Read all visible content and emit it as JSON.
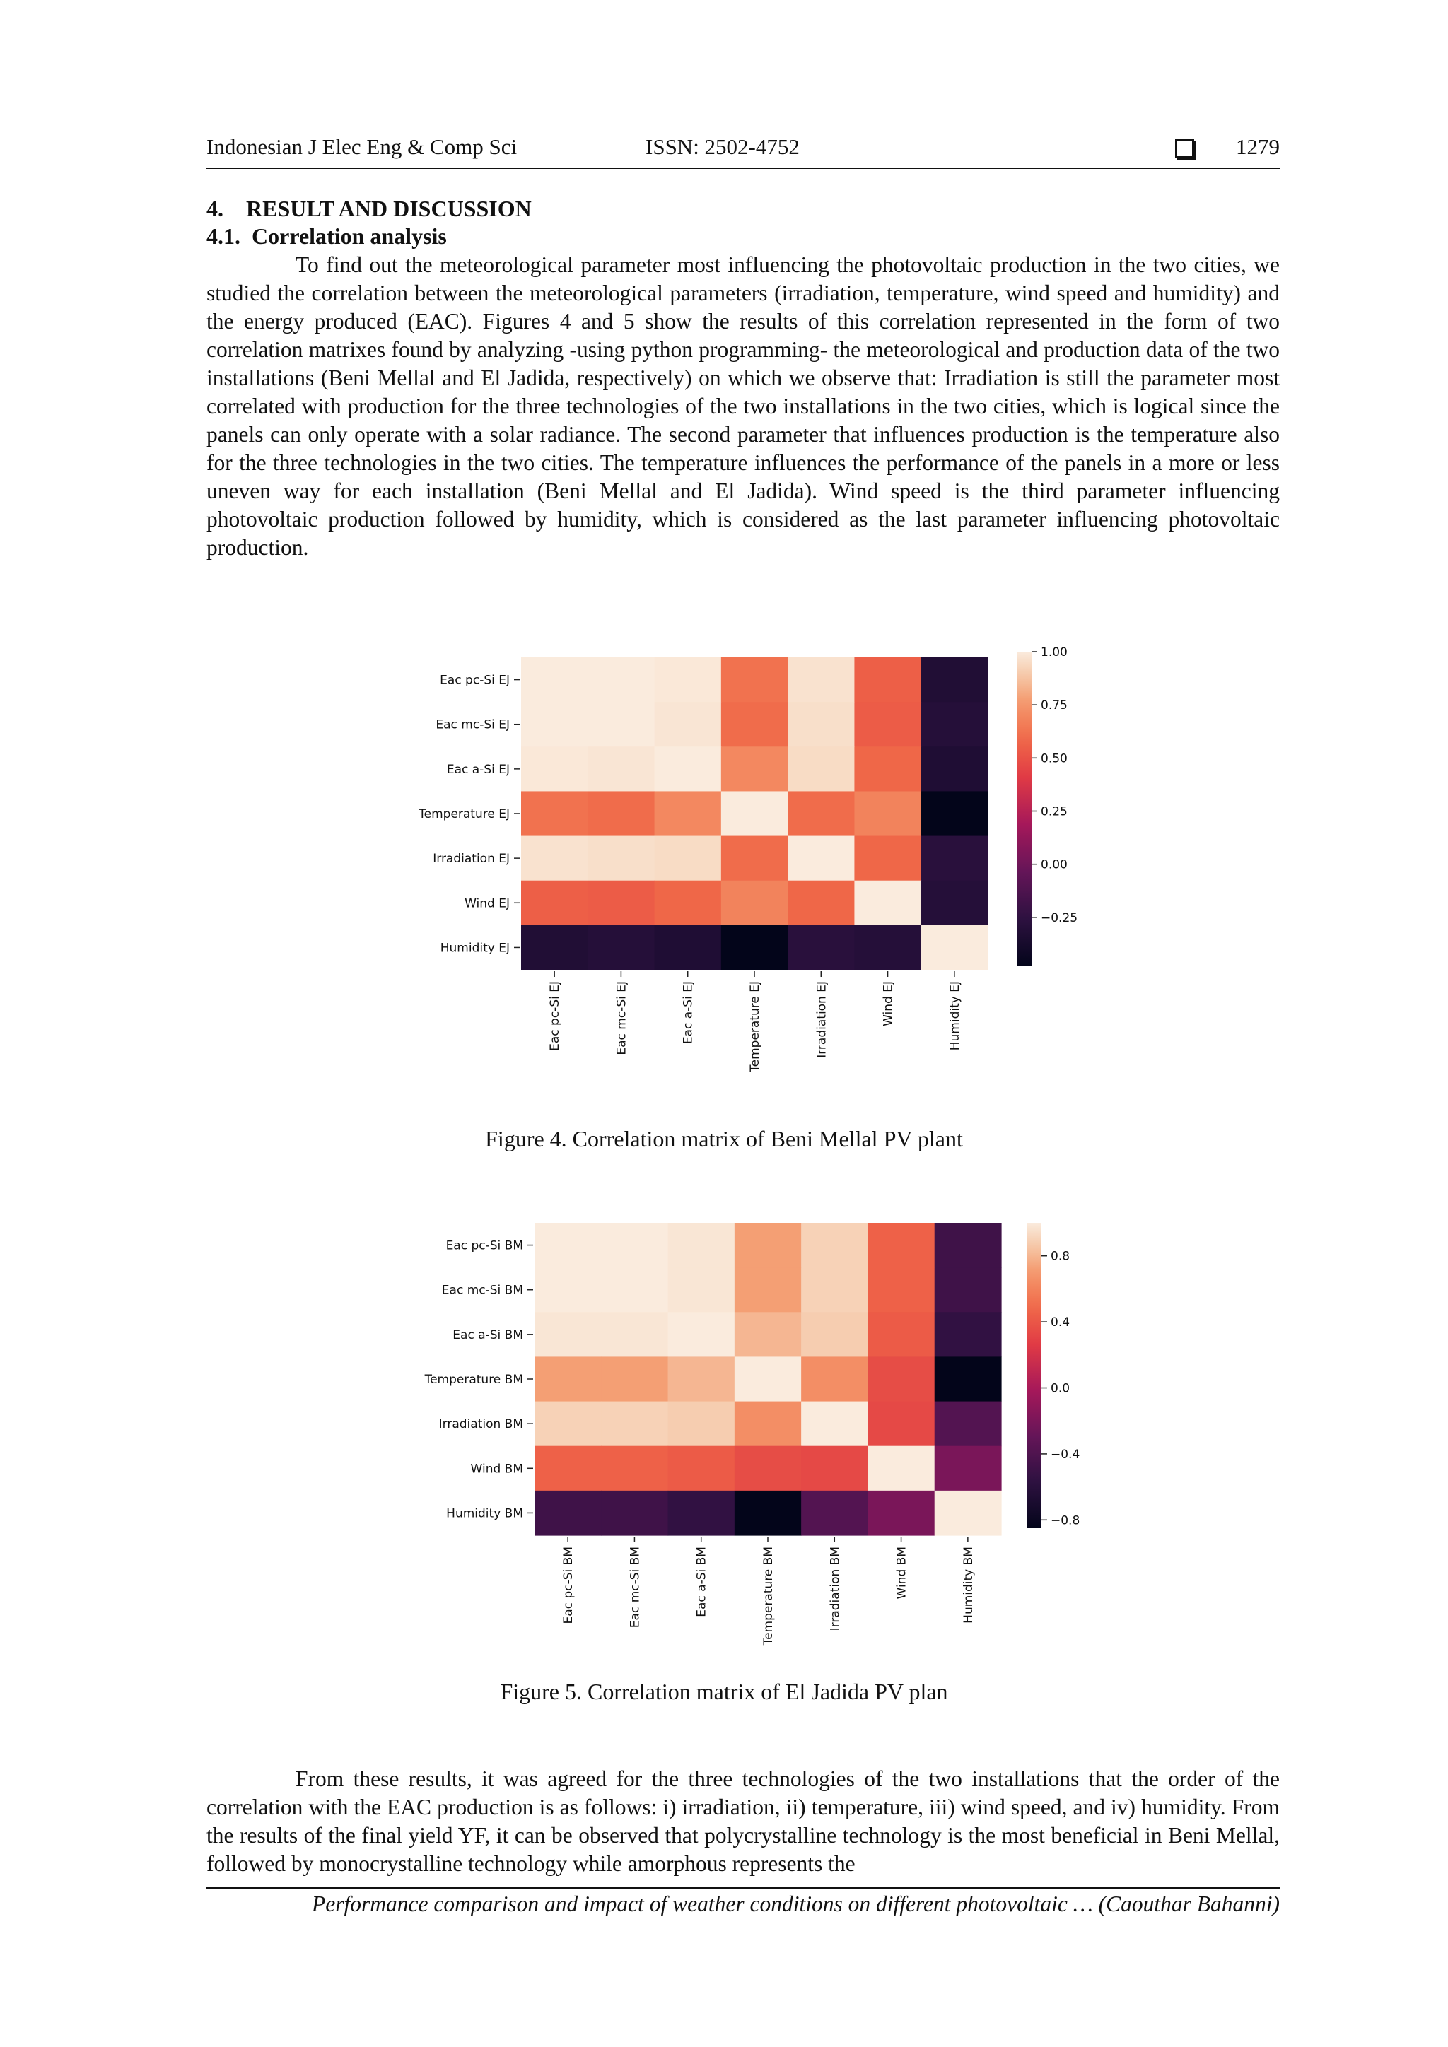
{
  "header": {
    "journal": "Indonesian J Elec Eng & Comp Sci",
    "issn": "ISSN: 2502-4752",
    "page_number": "1279"
  },
  "section_heading": "4.    RESULT AND DISCUSSION",
  "subsection_heading": "4.1.  Correlation analysis",
  "paragraph1": "To find out the meteorological parameter most influencing the photovoltaic production in the two cities, we studied the correlation between the meteorological parameters (irradiation, temperature, wind speed and humidity) and the energy produced (EAC). Figures 4 and 5 show the results of this correlation represented in the form of two correlation matrixes found by analyzing -using python programming- the meteorological and production data of the two installations (Beni Mellal and El Jadida, respectively) on which we observe that: Irradiation is still the parameter most correlated with production for the three technologies of the two installations in the two cities, which is logical since the panels can only operate with a solar radiance. The second parameter that influences production is the temperature also for the three technologies in the two cities. The temperature influences the performance of the panels in a more or less uneven way for each installation (Beni Mellal and El Jadida). Wind speed is the third parameter influencing photovoltaic production followed by humidity, which is considered as the last parameter influencing photovoltaic production.",
  "figure4_caption": "Figure 4. Correlation matrix of Beni Mellal PV plant",
  "figure5_caption": "Figure 5. Correlation matrix of El Jadida PV plan",
  "paragraph2": "From these results, it was agreed for the three technologies of the two installations that the order of the correlation with the EAC production is as follows: i) irradiation, ii) temperature, iii) wind speed, and iv) humidity. From the results of the final yield YF, it can be observed that polycrystalline technology is the most beneficial in Beni Mellal, followed by monocrystalline technology while amorphous represents the",
  "footer": "Performance comparison and impact of weather conditions on different photovoltaic … (Caouthar Bahanni)",
  "colors": {
    "text": "#111111",
    "heat_low": "#03051a",
    "heat_high": "#faebdd"
  },
  "chart_data": [
    {
      "type": "heatmap",
      "labels": [
        "Eac pc-Si EJ",
        "Eac mc-Si EJ",
        "Eac a-Si EJ",
        "Temperature EJ",
        "Irradiation EJ",
        "Wind EJ",
        "Humidity EJ"
      ],
      "values": [
        [
          1.0,
          1.0,
          0.99,
          0.62,
          0.97,
          0.55,
          -0.32
        ],
        [
          1.0,
          1.0,
          0.98,
          0.6,
          0.96,
          0.54,
          -0.3
        ],
        [
          0.99,
          0.98,
          1.0,
          0.7,
          0.95,
          0.58,
          -0.33
        ],
        [
          0.62,
          0.6,
          0.7,
          1.0,
          0.6,
          0.68,
          -0.55
        ],
        [
          0.97,
          0.96,
          0.95,
          0.6,
          1.0,
          0.58,
          -0.28
        ],
        [
          0.55,
          0.54,
          0.58,
          0.68,
          0.58,
          1.0,
          -0.3
        ],
        [
          -0.32,
          -0.3,
          -0.33,
          -0.55,
          -0.28,
          -0.3,
          1.0
        ]
      ],
      "vmin": -0.48,
      "vmax": 1.0,
      "colorbar_ticks": [
        "1.00",
        "0.75",
        "0.50",
        "0.25",
        "0.00",
        "−0.25"
      ],
      "colorbar_tick_values": [
        1.0,
        0.75,
        0.5,
        0.25,
        0.0,
        -0.25
      ],
      "colormap": "rocket"
    },
    {
      "type": "heatmap",
      "labels": [
        "Eac pc-Si BM",
        "Eac mc-Si BM",
        "Eac a-Si BM",
        "Temperature BM",
        "Irradiation BM",
        "Wind BM",
        "Humidity BM"
      ],
      "values": [
        [
          1.0,
          1.0,
          0.98,
          0.72,
          0.9,
          0.45,
          -0.48
        ],
        [
          1.0,
          1.0,
          0.98,
          0.72,
          0.9,
          0.45,
          -0.48
        ],
        [
          0.98,
          0.98,
          1.0,
          0.8,
          0.88,
          0.42,
          -0.55
        ],
        [
          0.72,
          0.72,
          0.8,
          1.0,
          0.65,
          0.35,
          -0.85
        ],
        [
          0.9,
          0.9,
          0.88,
          0.65,
          1.0,
          0.33,
          -0.38
        ],
        [
          0.45,
          0.45,
          0.42,
          0.35,
          0.33,
          1.0,
          -0.2
        ],
        [
          -0.48,
          -0.48,
          -0.55,
          -0.85,
          -0.38,
          -0.2,
          1.0
        ]
      ],
      "vmin": -0.85,
      "vmax": 1.0,
      "colorbar_ticks": [
        "0.8",
        "0.4",
        "0.0",
        "−0.4",
        "−0.8"
      ],
      "colorbar_tick_values": [
        0.8,
        0.4,
        0.0,
        -0.4,
        -0.8
      ],
      "colormap": "rocket"
    }
  ]
}
